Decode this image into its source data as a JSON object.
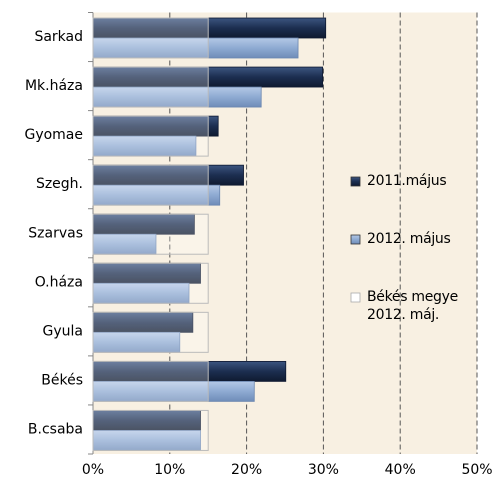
{
  "chart_data": {
    "type": "bar",
    "orientation": "horizontal",
    "categories": [
      "Sarkad",
      "Mk.háza",
      "Gyomae",
      "Szegh.",
      "Szarvas",
      "O.háza",
      "Gyula",
      "Békés",
      "B.csaba"
    ],
    "series": [
      {
        "name": "2011.május",
        "color": "#1c2e50",
        "values": [
          30.3,
          29.9,
          16.3,
          19.6,
          13.2,
          14.0,
          13.0,
          25.1,
          14.0
        ]
      },
      {
        "name": "2012. május",
        "color": "#8eaad2",
        "values": [
          26.7,
          21.9,
          13.4,
          16.5,
          8.2,
          12.5,
          11.3,
          21.0,
          14.0
        ]
      },
      {
        "name": "Békés megye 2012. máj.",
        "color": "#ffffff",
        "values": [
          15,
          15,
          15,
          15,
          15,
          15,
          15,
          15,
          15
        ]
      }
    ],
    "xlim": [
      0,
      50
    ],
    "xticks": [
      {
        "value": 0,
        "label": "0%"
      },
      {
        "value": 10,
        "label": "10%"
      },
      {
        "value": 20,
        "label": "20%"
      },
      {
        "value": 30,
        "label": "30%"
      },
      {
        "value": 40,
        "label": "40%"
      },
      {
        "value": 50,
        "label": "50%"
      }
    ],
    "grid": true,
    "legend": "right"
  }
}
